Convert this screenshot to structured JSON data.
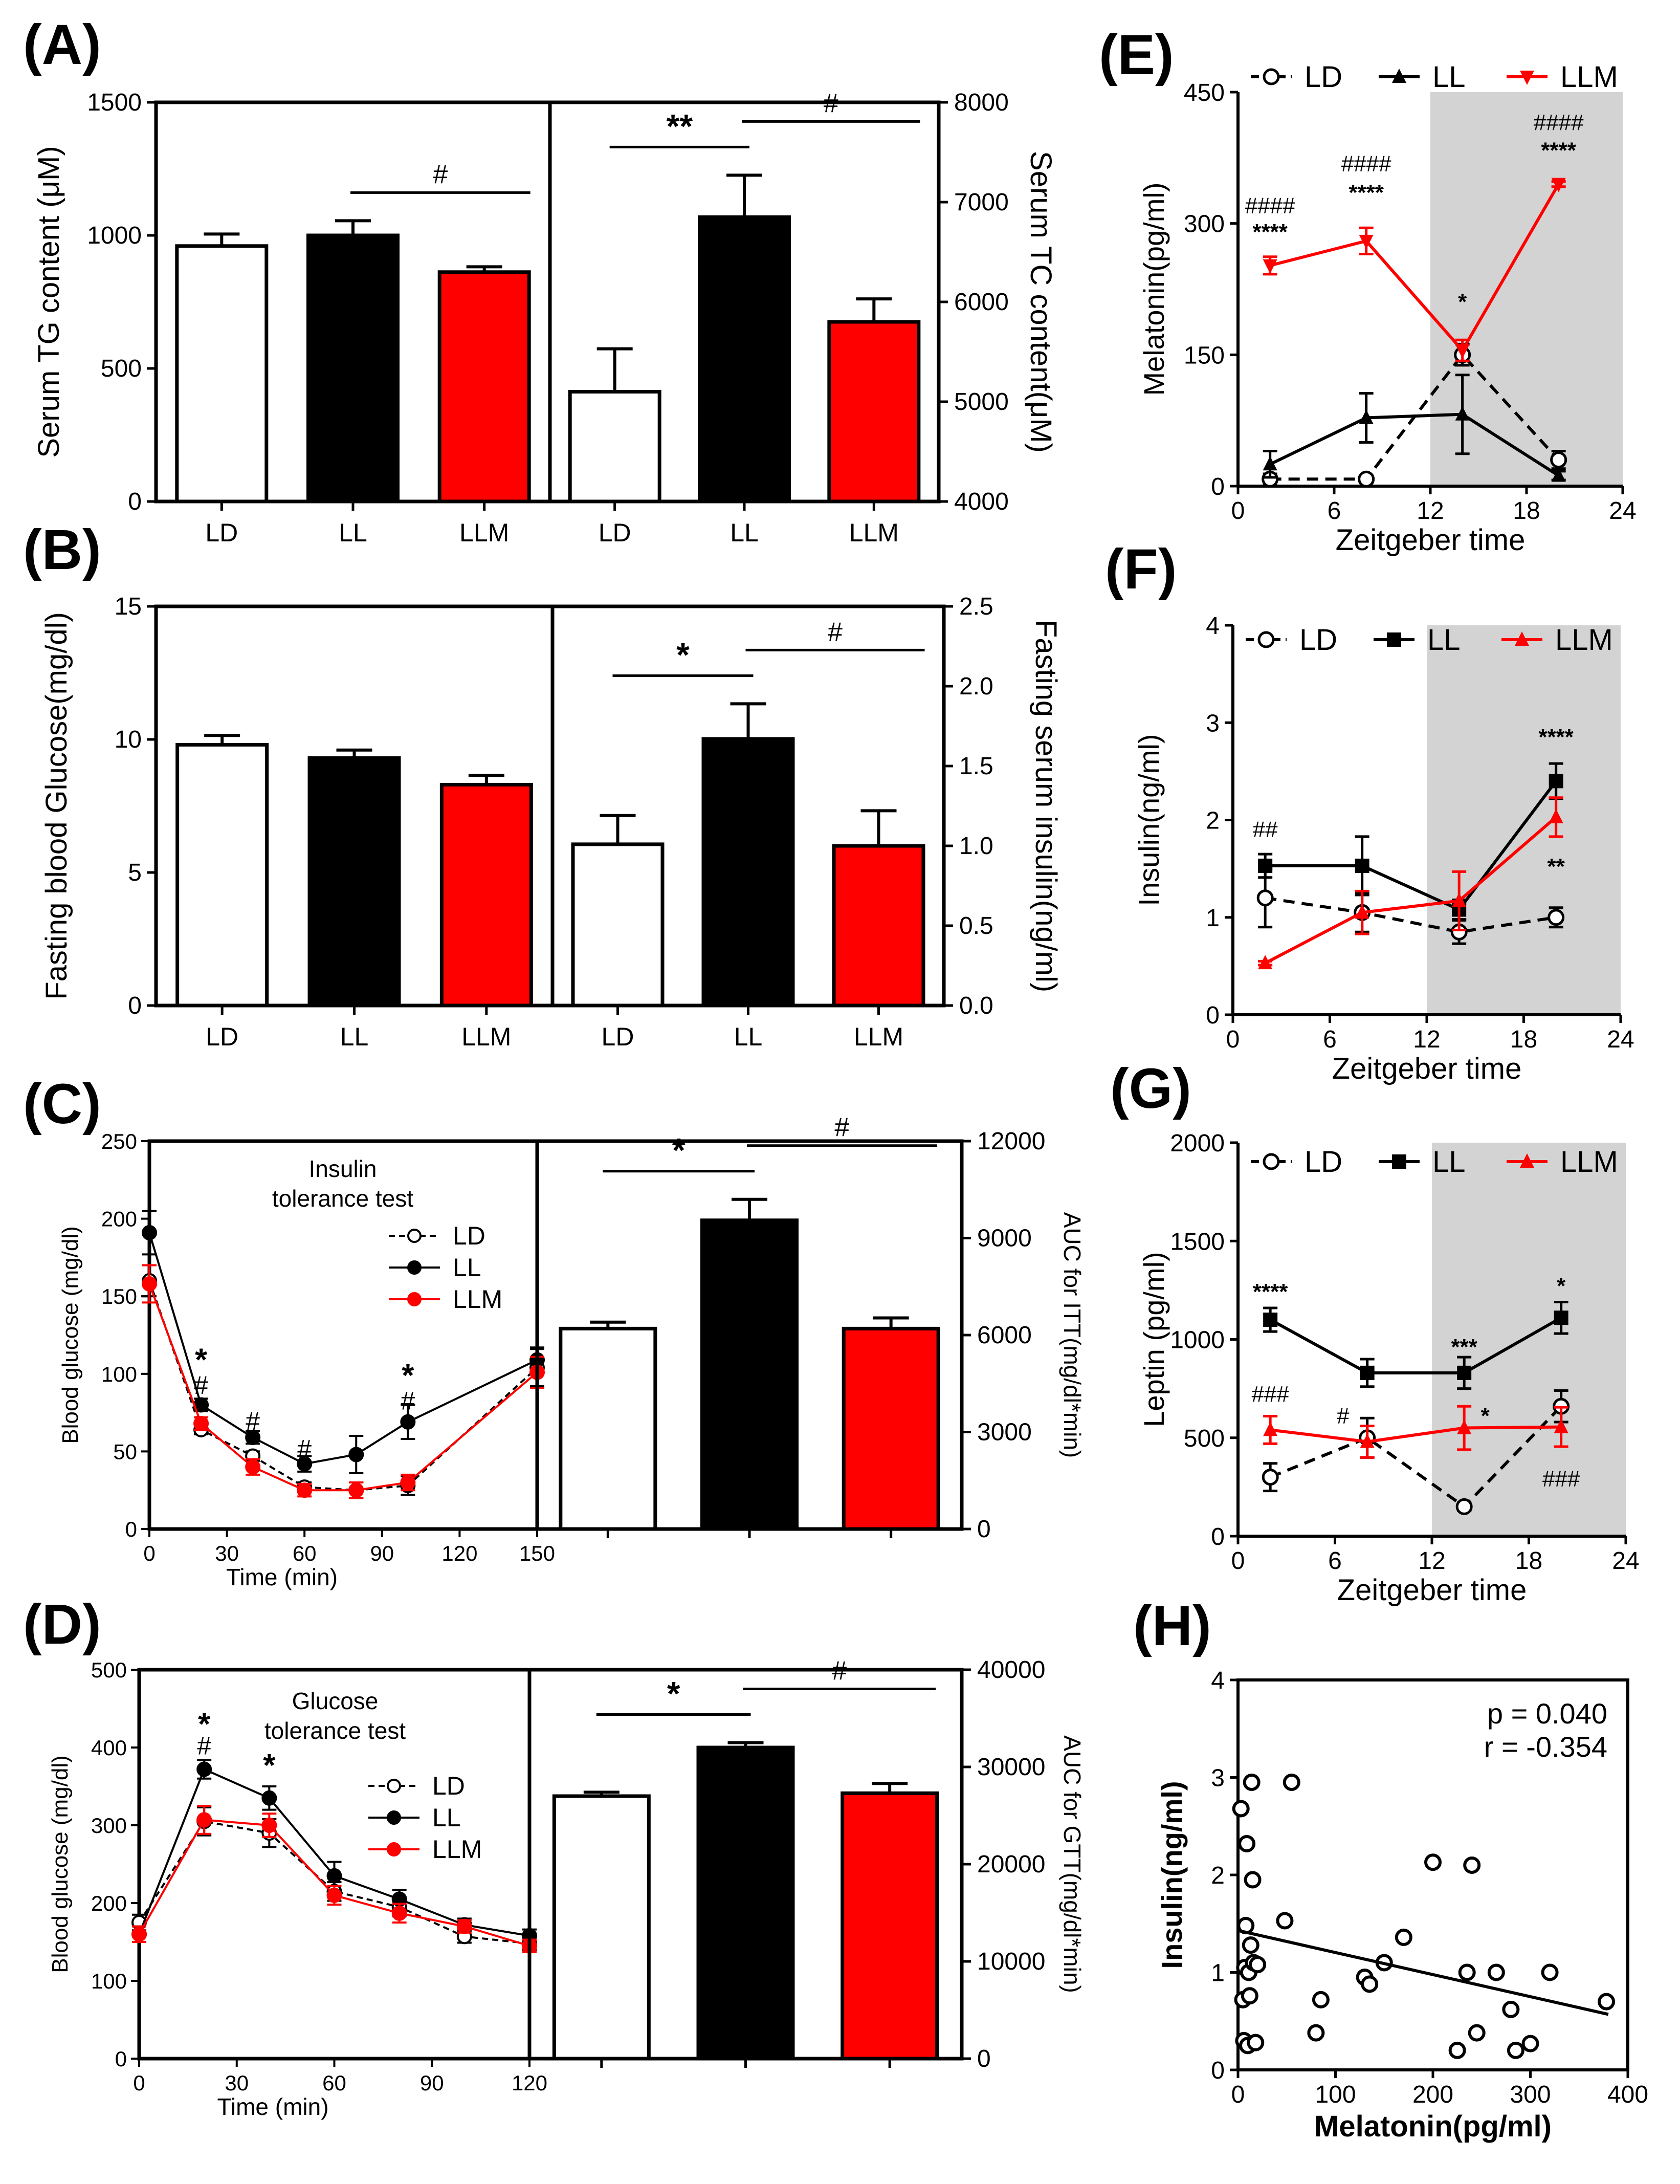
{
  "figure": {
    "panels": {
      "A": "(A)",
      "B": "(B)",
      "C": "(C)",
      "D": "(D)",
      "E": "(E)",
      "F": "(F)",
      "G": "(G)",
      "H": "(H)"
    }
  },
  "chart_data": [
    {
      "id": "A_left",
      "type": "bar",
      "categories": [
        "LD",
        "LL",
        "LLM"
      ],
      "values": [
        960,
        1000,
        862
      ],
      "errors": [
        45,
        55,
        20
      ],
      "colors": [
        "#ffffff",
        "#000000",
        "#ff0000"
      ],
      "ylabel": "Serum TG content (μM)",
      "ylim": [
        0,
        1500
      ],
      "yticks": [
        "0",
        "500",
        "1000",
        "1500"
      ],
      "annotations": [
        {
          "text": "#",
          "from": 1,
          "to": 2
        }
      ]
    },
    {
      "id": "A_right",
      "type": "bar",
      "categories": [
        "LD",
        "LL",
        "LLM"
      ],
      "values": [
        5100,
        6850,
        5800
      ],
      "errors": [
        430,
        420,
        230
      ],
      "colors": [
        "#ffffff",
        "#000000",
        "#ff0000"
      ],
      "ylabel": "Serum TC content(μM)",
      "ylim": [
        4000,
        8000
      ],
      "yticks": [
        "4000",
        "5000",
        "6000",
        "7000",
        "8000"
      ],
      "annotations": [
        {
          "text": "**",
          "from": 0,
          "to": 1
        },
        {
          "text": "#",
          "from": 1,
          "to": 2
        }
      ]
    },
    {
      "id": "B_left",
      "type": "bar",
      "categories": [
        "LD",
        "LL",
        "LLM"
      ],
      "values": [
        9.8,
        9.3,
        8.3
      ],
      "errors": [
        0.35,
        0.3,
        0.35
      ],
      "colors": [
        "#ffffff",
        "#000000",
        "#ff0000"
      ],
      "ylabel": "Fasting blood Glucose(mg/dl)",
      "ylim": [
        0,
        15
      ],
      "yticks": [
        "0",
        "5",
        "10",
        "15"
      ],
      "annotations": []
    },
    {
      "id": "B_right",
      "type": "bar",
      "categories": [
        "LD",
        "LL",
        "LLM"
      ],
      "values": [
        1.01,
        1.67,
        1.0
      ],
      "errors": [
        0.18,
        0.22,
        0.22
      ],
      "colors": [
        "#ffffff",
        "#000000",
        "#ff0000"
      ],
      "ylabel": "Fasting serum insulin(ng/ml)",
      "ylim": [
        0,
        2.5
      ],
      "yticks": [
        "0.0",
        "0.5",
        "1.0",
        "1.5",
        "2.0",
        "2.5"
      ],
      "annotations": [
        {
          "text": "*",
          "from": 0,
          "to": 1
        },
        {
          "text": "#",
          "from": 1,
          "to": 2
        }
      ]
    },
    {
      "id": "C_left",
      "type": "line",
      "x": [
        0,
        20,
        40,
        60,
        80,
        100,
        150
      ],
      "xticks": [
        "0",
        "30",
        "60",
        "90",
        "120",
        "150"
      ],
      "xlabel": "Time (min)",
      "ylabel": "Blood glucose (mg/dl)",
      "xlim": [
        0,
        150
      ],
      "ylim": [
        0,
        250
      ],
      "yticks": [
        "0",
        "50",
        "100",
        "150",
        "200",
        "250"
      ],
      "title": "Insulin tolerance test",
      "series": [
        {
          "name": "LD",
          "values": [
            160,
            64,
            47,
            27,
            25,
            28,
            104
          ],
          "errors": [
            10,
            3,
            3,
            3,
            5,
            6,
            12
          ],
          "color": "#000000",
          "marker": "open",
          "dash": "dashed"
        },
        {
          "name": "LL",
          "values": [
            191,
            80,
            59,
            42,
            48,
            69,
            109
          ],
          "errors": [
            14,
            4,
            4,
            5,
            12,
            11,
            8
          ],
          "color": "#000000",
          "marker": "filled",
          "dash": "solid"
        },
        {
          "name": "LLM",
          "values": [
            158,
            68,
            40,
            25,
            25,
            30,
            101
          ],
          "errors": [
            12,
            4,
            5,
            4,
            5,
            5,
            10
          ],
          "color": "#ff0000",
          "marker": "filled",
          "dash": "solid"
        }
      ],
      "annotations": [
        {
          "x": 20,
          "y": 108,
          "text": "*"
        },
        {
          "x": 20,
          "y": 93,
          "text": "#"
        },
        {
          "x": 40,
          "y": 70,
          "text": "#"
        },
        {
          "x": 60,
          "y": 52,
          "text": "#"
        },
        {
          "x": 100,
          "y": 98,
          "text": "*"
        },
        {
          "x": 100,
          "y": 83,
          "text": "#"
        }
      ]
    },
    {
      "id": "C_right",
      "type": "bar",
      "categories": [
        "LD",
        "LL",
        "LLM"
      ],
      "values": [
        6200,
        9550,
        6200
      ],
      "errors": [
        200,
        650,
        330
      ],
      "colors": [
        "#ffffff",
        "#000000",
        "#ff0000"
      ],
      "ylabel": "AUC for ITT(mg/dl*min)",
      "ylim": [
        0,
        12000
      ],
      "yticks": [
        "0",
        "3000",
        "6000",
        "9000",
        "12000"
      ],
      "annotations": [
        {
          "text": "*",
          "from": 0,
          "to": 1
        },
        {
          "text": "#",
          "from": 1,
          "to": 2
        }
      ]
    },
    {
      "id": "D_left",
      "type": "line",
      "x": [
        0,
        20,
        40,
        60,
        80,
        100,
        120
      ],
      "xticks": [
        "0",
        "30",
        "60",
        "90",
        "120"
      ],
      "xlabel": "Time (min)",
      "ylabel": "Blood glucose (mg/dl)",
      "xlim": [
        0,
        120
      ],
      "ylim": [
        0,
        500
      ],
      "yticks": [
        "0",
        "100",
        "200",
        "300",
        "400",
        "500"
      ],
      "title": "Glucose tolerance test",
      "series": [
        {
          "name": "LD",
          "values": [
            175,
            305,
            290,
            215,
            195,
            157,
            148
          ],
          "errors": [
            10,
            18,
            18,
            12,
            12,
            8,
            8
          ],
          "color": "#000000",
          "marker": "open",
          "dash": "dashed"
        },
        {
          "name": "LL",
          "values": [
            160,
            372,
            335,
            235,
            205,
            172,
            158
          ],
          "errors": [
            10,
            12,
            15,
            18,
            12,
            8,
            8
          ],
          "color": "#000000",
          "marker": "filled",
          "dash": "solid"
        },
        {
          "name": "LLM",
          "values": [
            160,
            307,
            300,
            210,
            187,
            170,
            145
          ],
          "errors": [
            10,
            18,
            15,
            12,
            12,
            8,
            8
          ],
          "color": "#ff0000",
          "marker": "filled",
          "dash": "solid"
        }
      ],
      "annotations": [
        {
          "x": 20,
          "y": 428,
          "text": "*"
        },
        {
          "x": 20,
          "y": 403,
          "text": "#"
        },
        {
          "x": 40,
          "y": 375,
          "text": "*"
        }
      ]
    },
    {
      "id": "D_right",
      "type": "bar",
      "categories": [
        "LD",
        "LL",
        "LLM"
      ],
      "values": [
        27000,
        32000,
        27300
      ],
      "errors": [
        400,
        500,
        1000
      ],
      "colors": [
        "#ffffff",
        "#000000",
        "#ff0000"
      ],
      "ylabel": "AUC for GTT(mg/dl*min)",
      "ylim": [
        0,
        40000
      ],
      "yticks": [
        "0",
        "10000",
        "20000",
        "30000",
        "40000"
      ],
      "annotations": [
        {
          "text": "*",
          "from": 0,
          "to": 1
        },
        {
          "text": "#",
          "from": 1,
          "to": 2
        }
      ]
    },
    {
      "id": "E",
      "type": "line",
      "x": [
        2,
        8,
        14,
        20
      ],
      "xlim": [
        0,
        24
      ],
      "ylim": [
        0,
        450
      ],
      "xticks": [
        "0",
        "6",
        "12",
        "18",
        "24"
      ],
      "yticks": [
        "0",
        "150",
        "300",
        "450"
      ],
      "xlabel": "Zeitgeber  time",
      "ylabel": "Melatonin(pg/ml)",
      "shade": [
        12,
        24
      ],
      "series": [
        {
          "name": "LD",
          "values": [
            8,
            8,
            150,
            30
          ],
          "errors": [
            6,
            4,
            12,
            10
          ],
          "color": "#000000",
          "marker": "open-circle",
          "dash": "dashed"
        },
        {
          "name": "LL",
          "values": [
            25,
            78,
            82,
            12
          ],
          "errors": [
            15,
            28,
            45,
            5
          ],
          "color": "#000000",
          "marker": "triangle",
          "dash": "solid"
        },
        {
          "name": "LLM",
          "values": [
            252,
            280,
            155,
            345
          ],
          "errors": [
            10,
            15,
            12,
            3
          ],
          "color": "#ff0000",
          "marker": "triangle-down",
          "dash": "solid"
        }
      ],
      "annotations": [
        {
          "x": 2,
          "y": 320,
          "text": "####"
        },
        {
          "x": 2,
          "y": 290,
          "text": "****"
        },
        {
          "x": 8,
          "y": 368,
          "text": "####"
        },
        {
          "x": 8,
          "y": 335,
          "text": "****"
        },
        {
          "x": 14,
          "y": 210,
          "text": "*"
        },
        {
          "x": 20,
          "y": 415,
          "text": "####"
        },
        {
          "x": 20,
          "y": 383,
          "text": "****"
        }
      ]
    },
    {
      "id": "F",
      "type": "line",
      "x": [
        2,
        8,
        14,
        20
      ],
      "xlim": [
        0,
        24
      ],
      "ylim": [
        0,
        4
      ],
      "xticks": [
        "0",
        "6",
        "12",
        "18",
        "24"
      ],
      "yticks": [
        "0",
        "1",
        "2",
        "3",
        "4"
      ],
      "xlabel": "Zeitgeber  time",
      "ylabel": "Insulin(ng/ml)",
      "shade": [
        12,
        24
      ],
      "series": [
        {
          "name": "LD",
          "values": [
            1.2,
            1.05,
            0.85,
            1.0
          ],
          "errors": [
            0.3,
            0.2,
            0.12,
            0.1
          ],
          "color": "#000000",
          "marker": "open-circle",
          "dash": "dashed"
        },
        {
          "name": "LL",
          "values": [
            1.53,
            1.53,
            1.08,
            2.4
          ],
          "errors": [
            0.12,
            0.3,
            0.1,
            0.18
          ],
          "color": "#000000",
          "marker": "square",
          "dash": "solid"
        },
        {
          "name": "LLM",
          "values": [
            0.53,
            1.05,
            1.17,
            2.03
          ],
          "errors": [
            0.02,
            0.22,
            0.3,
            0.2
          ],
          "color": "#ff0000",
          "marker": "triangle",
          "dash": "solid"
        }
      ],
      "annotations": [
        {
          "x": 2,
          "y": 1.9,
          "text": "##"
        },
        {
          "x": 20,
          "y": 2.85,
          "text": "****"
        },
        {
          "x": 20,
          "y": 1.52,
          "text": "**"
        }
      ]
    },
    {
      "id": "G",
      "type": "line",
      "x": [
        2,
        8,
        14,
        20
      ],
      "xlim": [
        0,
        24
      ],
      "ylim": [
        0,
        2000
      ],
      "xticks": [
        "0",
        "6",
        "12",
        "18",
        "24"
      ],
      "yticks": [
        "0",
        "500",
        "1000",
        "1500",
        "2000"
      ],
      "xlabel": "Zeitgeber  time",
      "ylabel": "Leptin (pg/ml)",
      "shade": [
        12,
        24
      ],
      "series": [
        {
          "name": "LD",
          "values": [
            300,
            500,
            150,
            660
          ],
          "errors": [
            70,
            100,
            20,
            80
          ],
          "color": "#000000",
          "marker": "open-circle",
          "dash": "dashed"
        },
        {
          "name": "LL",
          "values": [
            1100,
            830,
            830,
            1110
          ],
          "errors": [
            60,
            70,
            80,
            80
          ],
          "color": "#000000",
          "marker": "square",
          "dash": "solid"
        },
        {
          "name": "LLM",
          "values": [
            540,
            480,
            550,
            555
          ],
          "errors": [
            70,
            80,
            110,
            100
          ],
          "color": "#ff0000",
          "marker": "triangle",
          "dash": "solid"
        }
      ],
      "annotations": [
        {
          "x": 2,
          "y": 1240,
          "text": "****"
        },
        {
          "x": 2,
          "y": 720,
          "text": "###"
        },
        {
          "x": 6.5,
          "y": 610,
          "text": "#"
        },
        {
          "x": 14,
          "y": 960,
          "text": "***"
        },
        {
          "x": 15.3,
          "y": 610,
          "text": "*"
        },
        {
          "x": 20,
          "y": 1270,
          "text": "*"
        },
        {
          "x": 20,
          "y": 290,
          "text": "###"
        }
      ]
    },
    {
      "id": "H",
      "type": "scatter",
      "xlabel": "Melatonin(pg/ml)",
      "ylabel": "Insulin(ng/ml)",
      "xlim": [
        0,
        400
      ],
      "ylim": [
        0,
        4
      ],
      "xticks": [
        "0",
        "100",
        "200",
        "300",
        "400"
      ],
      "yticks": [
        "0",
        "1",
        "2",
        "3",
        "4"
      ],
      "points": [
        [
          3,
          2.68
        ],
        [
          5,
          0.72
        ],
        [
          6,
          0.3
        ],
        [
          7,
          1.05
        ],
        [
          8,
          1.48
        ],
        [
          9,
          2.32
        ],
        [
          10,
          0.25
        ],
        [
          11,
          1.0
        ],
        [
          12,
          0.76
        ],
        [
          13,
          1.28
        ],
        [
          14,
          2.95
        ],
        [
          15,
          1.95
        ],
        [
          16,
          1.1
        ],
        [
          18,
          0.28
        ],
        [
          20,
          1.08
        ],
        [
          48,
          1.53
        ],
        [
          55,
          2.95
        ],
        [
          80,
          0.38
        ],
        [
          85,
          0.72
        ],
        [
          130,
          0.95
        ],
        [
          135,
          0.88
        ],
        [
          150,
          1.1
        ],
        [
          170,
          1.36
        ],
        [
          200,
          2.13
        ],
        [
          225,
          0.2
        ],
        [
          235,
          1.0
        ],
        [
          240,
          2.1
        ],
        [
          245,
          0.38
        ],
        [
          265,
          1.0
        ],
        [
          280,
          0.62
        ],
        [
          285,
          0.2
        ],
        [
          300,
          0.27
        ],
        [
          320,
          1.0
        ],
        [
          378,
          0.7
        ]
      ],
      "fit": {
        "x": [
          0,
          380
        ],
        "y": [
          1.43,
          0.57
        ]
      },
      "stats": {
        "p": "p =  0.040",
        "r": "r = -0.354"
      }
    }
  ]
}
